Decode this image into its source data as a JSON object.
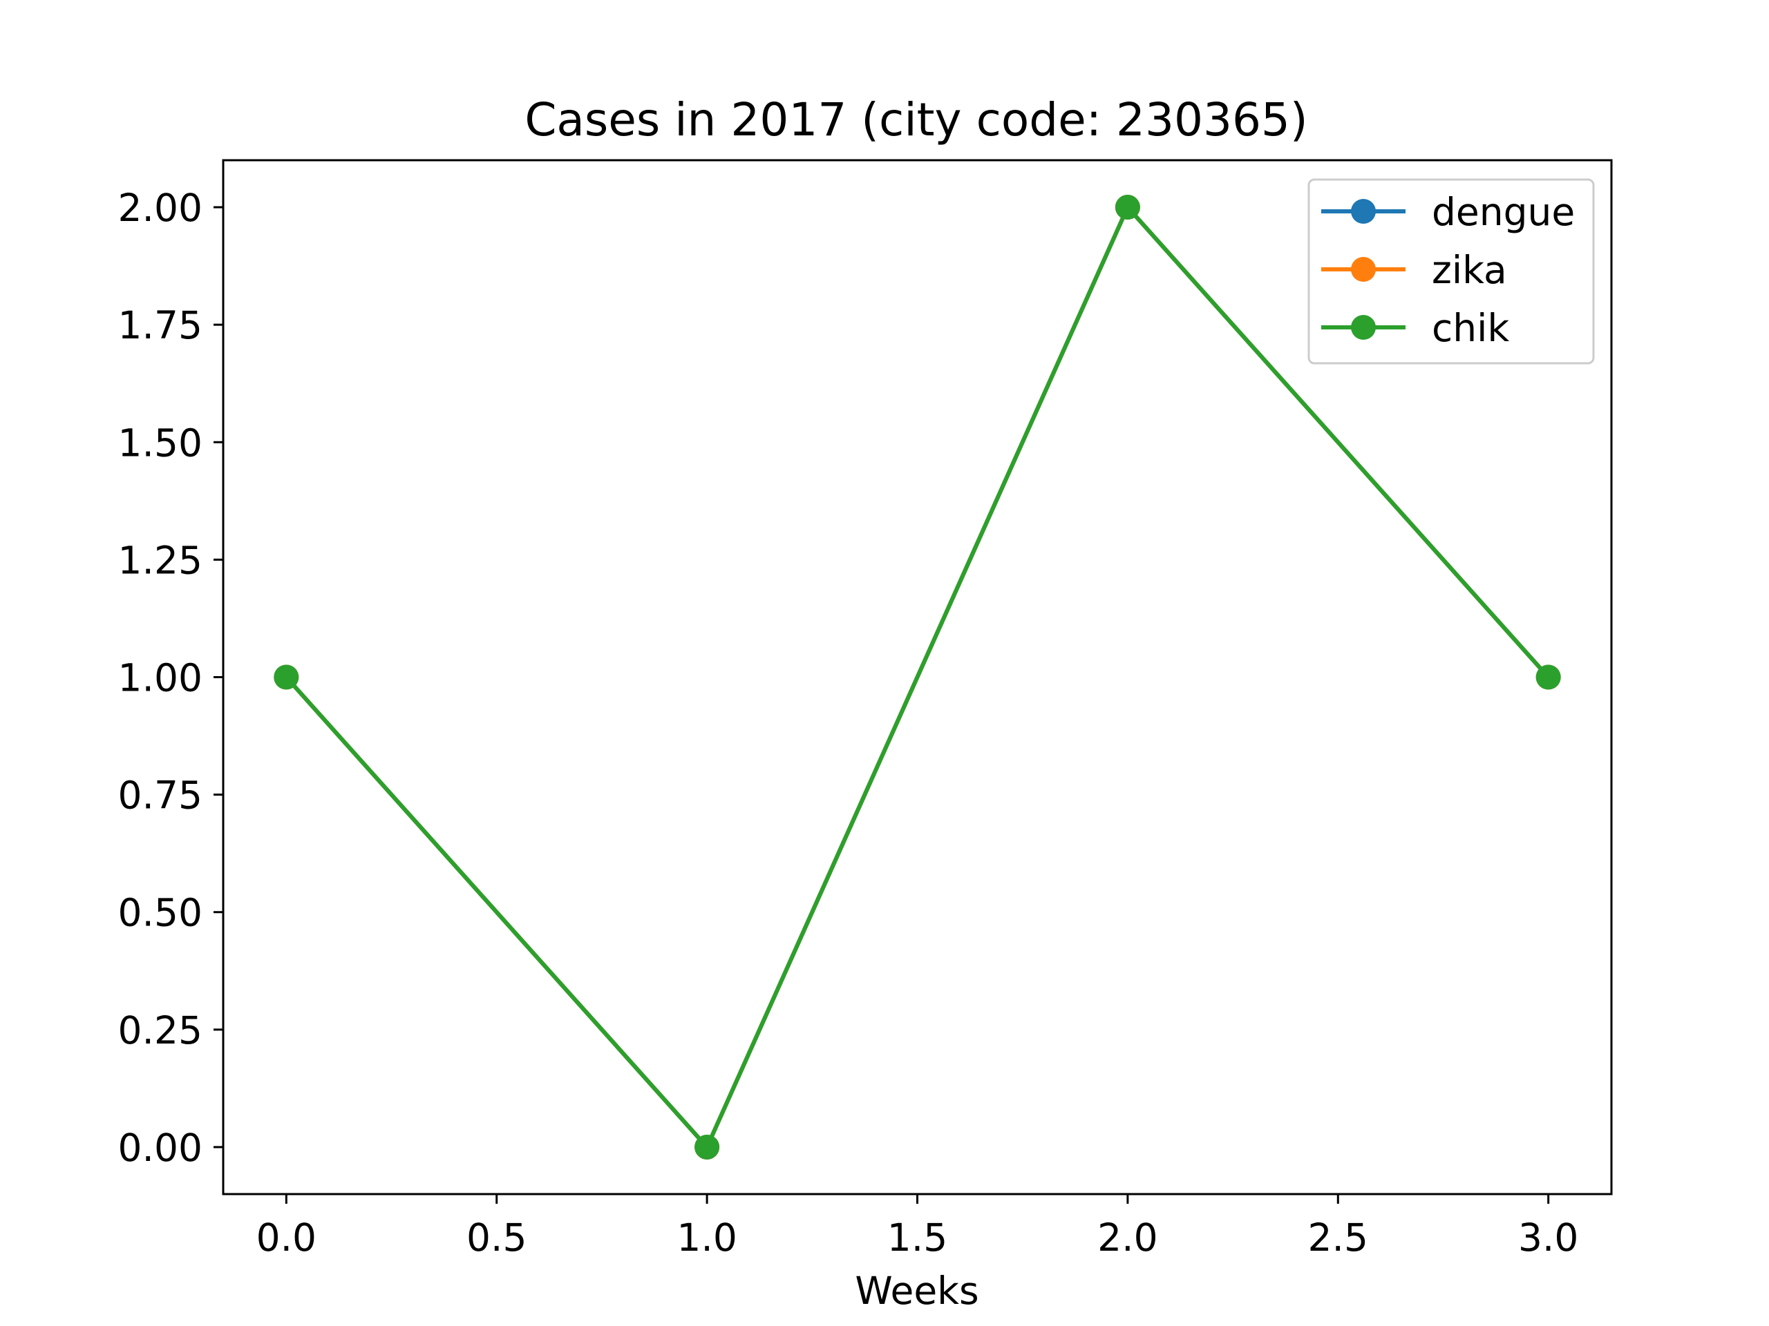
{
  "chart_data": {
    "type": "line",
    "title": "Cases in 2017 (city code: 230365)",
    "xlabel": "Weeks",
    "ylabel": "",
    "x": [
      0,
      1,
      2,
      3
    ],
    "series": [
      {
        "name": "dengue",
        "values": [
          1,
          0,
          2,
          1
        ],
        "color": "#1f77b4"
      },
      {
        "name": "zika",
        "values": [
          1,
          0,
          2,
          1
        ],
        "color": "#ff7f0e"
      },
      {
        "name": "chik",
        "values": [
          1,
          0,
          2,
          1
        ],
        "color": "#2ca02c"
      }
    ],
    "xlim": [
      -0.15,
      3.15
    ],
    "ylim": [
      -0.1,
      2.1
    ],
    "xticks": [
      0.0,
      0.5,
      1.0,
      1.5,
      2.0,
      2.5,
      3.0
    ],
    "xtick_labels": [
      "0.0",
      "0.5",
      "1.0",
      "1.5",
      "2.0",
      "2.5",
      "3.0"
    ],
    "yticks": [
      0.0,
      0.25,
      0.5,
      0.75,
      1.0,
      1.25,
      1.5,
      1.75,
      2.0
    ],
    "ytick_labels": [
      "0.00",
      "0.25",
      "0.50",
      "0.75",
      "1.00",
      "1.25",
      "1.50",
      "1.75",
      "2.00"
    ],
    "grid": false,
    "legend_position": "top-right"
  }
}
